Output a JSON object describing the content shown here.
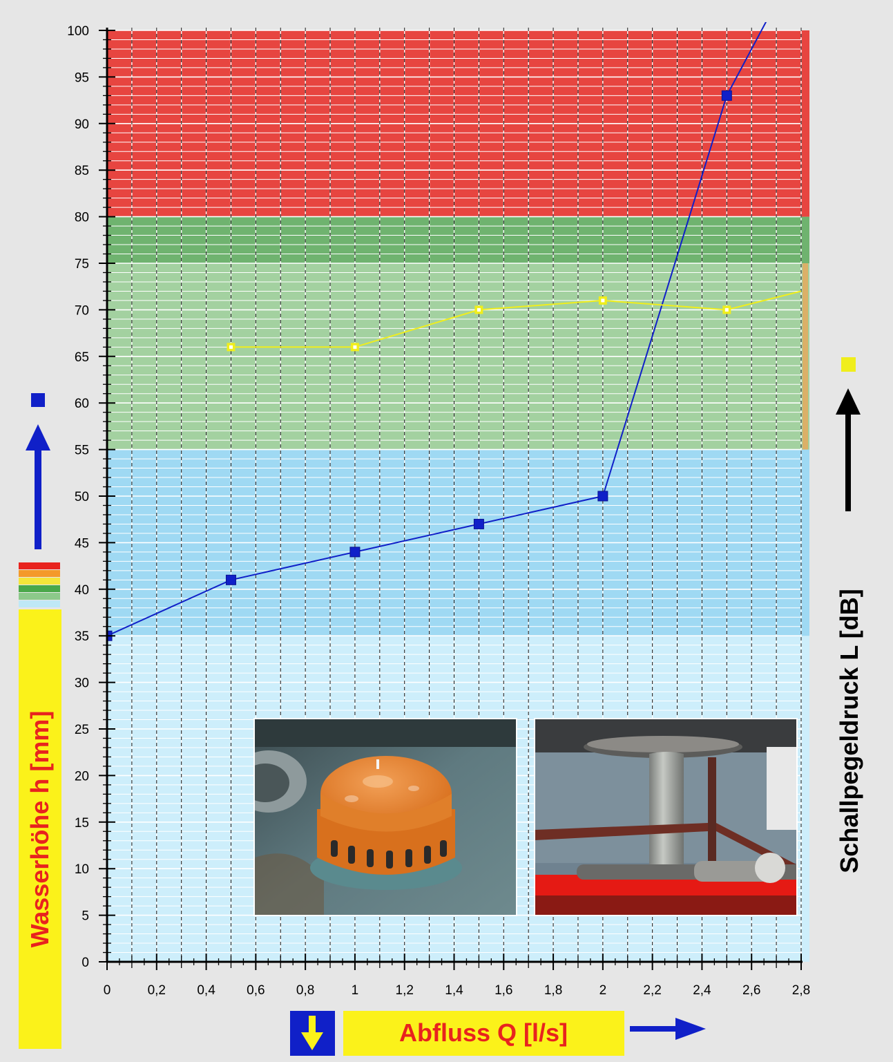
{
  "chart_data": {
    "type": "line",
    "title": "",
    "xlabel": "Abfluss Q [l/s]",
    "ylabel": "Wasserhöhe h [mm]",
    "y2label": "Schallpegeldruck L [dB]",
    "xlim": [
      0,
      2.8
    ],
    "ylim": [
      0,
      100
    ],
    "x_ticks": [
      "0",
      "0,2",
      "0,4",
      "0,6",
      "0,8",
      "1",
      "1,2",
      "1,4",
      "1,6",
      "1,8",
      "2",
      "2,2",
      "2,4",
      "2,6",
      "2,8"
    ],
    "y_ticks": [
      "0",
      "5",
      "10",
      "15",
      "20",
      "25",
      "30",
      "35",
      "40",
      "45",
      "50",
      "55",
      "60",
      "65",
      "70",
      "75",
      "80",
      "85",
      "90",
      "95",
      "100"
    ],
    "grid": true,
    "legend": "none",
    "bands": [
      {
        "from": 0,
        "to": 35,
        "color": "#cdeefb"
      },
      {
        "from": 35,
        "to": 55,
        "color": "#9fd9f3"
      },
      {
        "from": 55,
        "to": 75,
        "color": "#a3d1a0"
      },
      {
        "from": 75,
        "to": 80,
        "color": "#6fb36f"
      },
      {
        "from": 80,
        "to": 100,
        "color": "#e74540"
      }
    ],
    "series": [
      {
        "key": "wasserhoehe",
        "color": "#1020c8",
        "marker": "square-filled",
        "x": [
          0,
          0.5,
          1,
          1.5,
          2,
          2.5,
          2.67
        ],
        "y": [
          35,
          41,
          44,
          47,
          50,
          93,
          101.5
        ]
      },
      {
        "key": "schallpegel",
        "color": "#f0ee1c",
        "marker": "square-hollow",
        "x": [
          0.5,
          1,
          1.5,
          2,
          2.5,
          2.8
        ],
        "y": [
          66,
          66,
          70,
          71,
          70,
          72
        ]
      }
    ]
  },
  "colors": {
    "background": "#e6e6e6",
    "blue_series": "#1020c8",
    "yellow_series": "#f0ee1c",
    "axis_title_red": "#e8231e",
    "label_box_yellow": "#fbf21a",
    "arrow_blue": "#1020c8",
    "arrow_black": "#000000"
  },
  "icons": {
    "y_axis_arrow": "arrow-up-blue-icon",
    "y2_axis_arrow": "arrow-up-black-icon",
    "x_axis_arrow": "arrow-right-blue-icon",
    "down_arrow": "arrow-down-yellow-icon",
    "color_scale": "color-scale-legend-icon",
    "blue_marker": "blue-square-marker-icon",
    "yellow_marker": "yellow-square-marker-icon"
  },
  "photos": [
    {
      "name": "photo-orange-drain-cap"
    },
    {
      "name": "photo-drain-pipe-underside"
    }
  ]
}
